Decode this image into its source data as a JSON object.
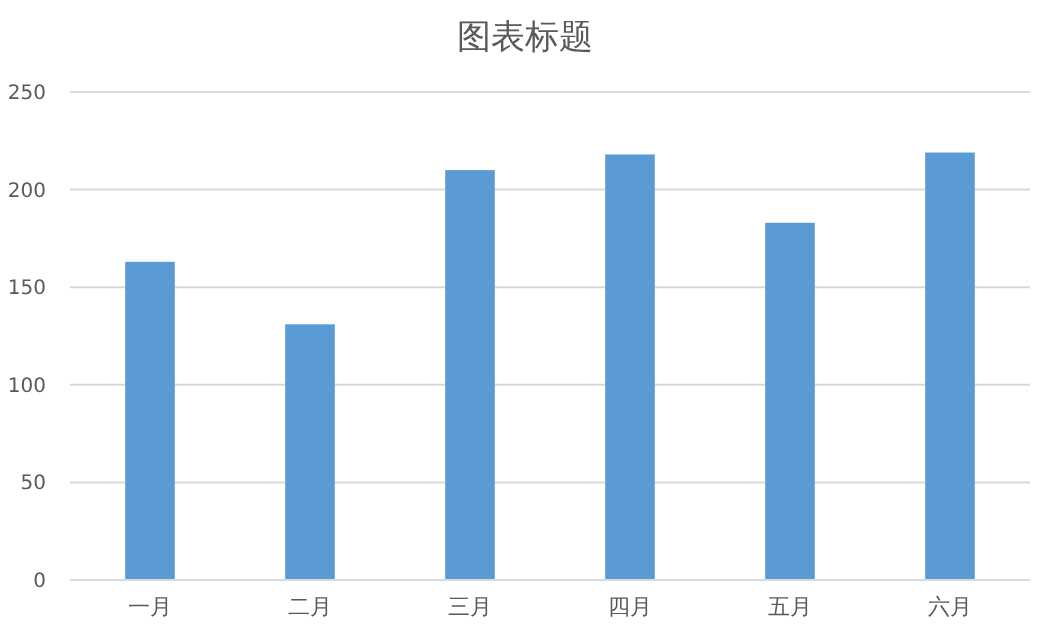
{
  "chart_data": {
    "type": "bar",
    "title": "图表标题",
    "categories": [
      "一月",
      "二月",
      "三月",
      "四月",
      "五月",
      "六月"
    ],
    "values": [
      163,
      131,
      210,
      218,
      183,
      219
    ],
    "color": "#5b9bd5",
    "ylim": [
      0,
      250
    ],
    "yticks": [
      0,
      50,
      100,
      150,
      200,
      250
    ],
    "grid": "y"
  }
}
